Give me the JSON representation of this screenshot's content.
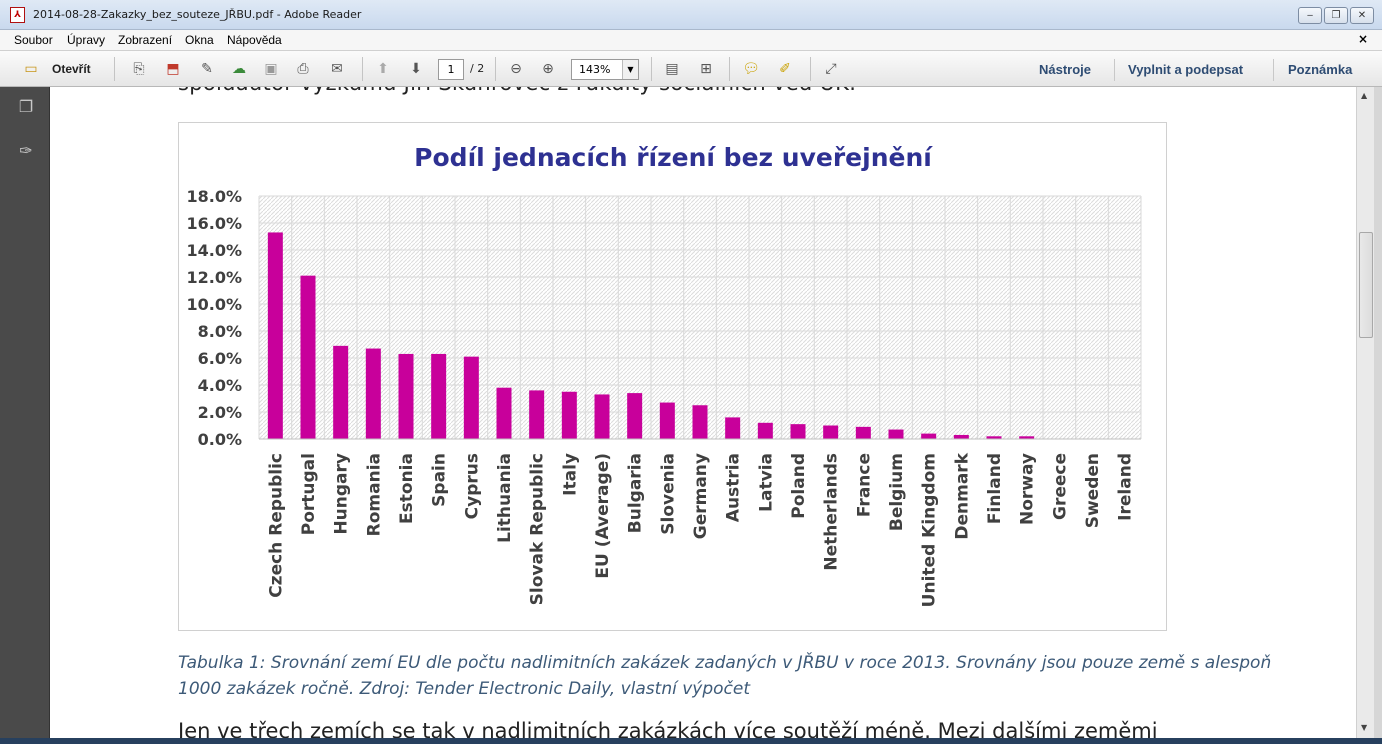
{
  "window": {
    "title": "2014-08-28-Zakazky_bez_souteze_JŘBU.pdf - Adobe Reader",
    "app_icon": "pdf-icon",
    "buttons": {
      "minimize": "‒",
      "maximize": "❐",
      "close": "✕"
    }
  },
  "menubar": {
    "items": [
      "Soubor",
      "Úpravy",
      "Zobrazení",
      "Okna",
      "Nápověda"
    ],
    "close_doc": "×"
  },
  "toolbar": {
    "open_label": "Otevřít",
    "page_current": "1",
    "page_total": "/ 2",
    "zoom": "143%",
    "right_buttons": [
      "Nástroje",
      "Vyplnit a podepsat",
      "Poznámka"
    ]
  },
  "document": {
    "previous_line": "spoluautor výzkumu Jiří Skuhrovec z Fakulty sociálních věd UK.",
    "caption": "Tabulka 1: Srovnání zemí EU dle počtu nadlimitních zakázek zadaných v JŘBU v roce 2013. Srovnány jsou pouze země s alespoň 1000 zakázek ročně. Zdroj: Tender Electronic Daily, vlastní výpočet",
    "next_line": "Jen ve třech zemích se tak v nadlimitních zakázkách více soutěží méně. Mezi dalšími zeměmi"
  },
  "chart_data": {
    "type": "bar",
    "title": "Podíl jednacích řízení bez uveřejnění",
    "categories": [
      "Czech Republic",
      "Portugal",
      "Hungary",
      "Romania",
      "Estonia",
      "Spain",
      "Cyprus",
      "Lithuania",
      "Slovak Republic",
      "Italy",
      "EU (Average)",
      "Bulgaria",
      "Slovenia",
      "Germany",
      "Austria",
      "Latvia",
      "Poland",
      "Netherlands",
      "France",
      "Belgium",
      "United Kingdom",
      "Denmark",
      "Finland",
      "Norway",
      "Greece",
      "Sweden",
      "Ireland"
    ],
    "values": [
      15.3,
      12.1,
      6.9,
      6.7,
      6.3,
      6.3,
      6.1,
      3.8,
      3.6,
      3.5,
      3.3,
      3.4,
      2.7,
      2.5,
      1.6,
      1.2,
      1.1,
      1.0,
      0.9,
      0.7,
      0.4,
      0.3,
      0.2,
      0.2,
      0.0,
      0.0,
      0.0
    ],
    "y_ticks": [
      "0.0%",
      "2.0%",
      "4.0%",
      "6.0%",
      "8.0%",
      "10.0%",
      "12.0%",
      "14.0%",
      "16.0%",
      "18.0%"
    ],
    "ylim": [
      0,
      18
    ],
    "bar_color": "#c8009b",
    "title_color": "#2e3192",
    "grid": true,
    "legend": "none"
  }
}
